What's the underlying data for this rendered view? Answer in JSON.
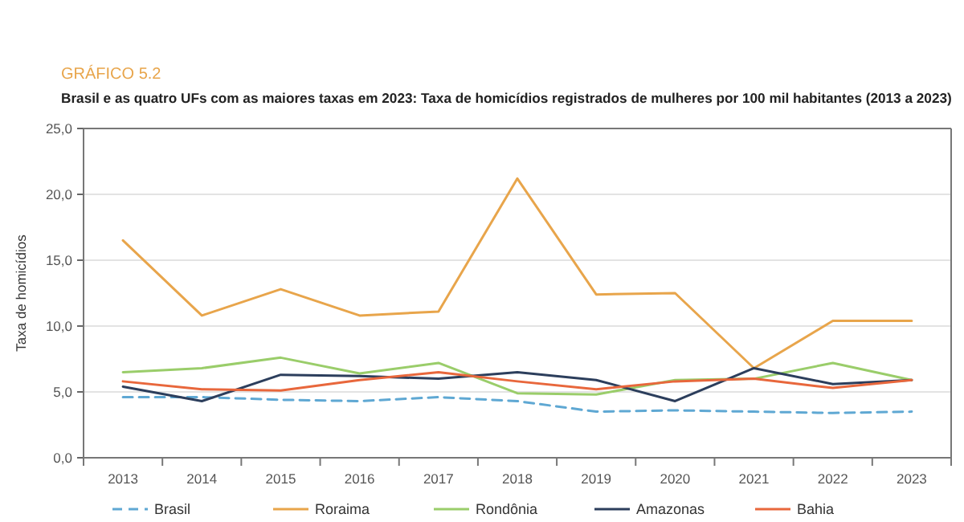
{
  "chart_data": {
    "type": "line",
    "title": "GRÁFICO 5.2",
    "subtitle": "Brasil e as quatro UFs com as maiores taxas em 2023: Taxa de homicídios registrados de mulheres por 100 mil habitantes (2013 a 2023)",
    "ylabel": "Taxa de homicídios",
    "categories": [
      "2013",
      "2014",
      "2015",
      "2016",
      "2017",
      "2018",
      "2019",
      "2020",
      "2021",
      "2022",
      "2023"
    ],
    "ylim": [
      0,
      25
    ],
    "yticks": [
      {
        "value": 0,
        "label": "0,0"
      },
      {
        "value": 5,
        "label": "5,0"
      },
      {
        "value": 10,
        "label": "10,0"
      },
      {
        "value": 15,
        "label": "15,0"
      },
      {
        "value": 20,
        "label": "20,0"
      },
      {
        "value": 25,
        "label": "25,0"
      }
    ],
    "grid": "y",
    "legend": "bottom",
    "marker": "none",
    "series": [
      {
        "name": "Brasil",
        "color": "#5fa8d3",
        "line_style": "dashed",
        "values": [
          4.6,
          4.6,
          4.4,
          4.3,
          4.6,
          4.3,
          3.5,
          3.6,
          3.5,
          3.4,
          3.5
        ]
      },
      {
        "name": "Roraima",
        "color": "#e8a54b",
        "values": [
          16.5,
          10.8,
          12.8,
          10.8,
          11.1,
          21.2,
          12.4,
          12.5,
          6.8,
          10.4,
          10.4
        ]
      },
      {
        "name": "Rondônia",
        "color": "#9acd6a",
        "values": [
          6.5,
          6.8,
          7.6,
          6.4,
          7.2,
          4.9,
          4.8,
          5.9,
          6.0,
          7.2,
          5.9
        ]
      },
      {
        "name": "Amazonas",
        "color": "#2c3e5c",
        "values": [
          5.4,
          4.3,
          6.3,
          6.2,
          6.0,
          6.5,
          5.9,
          4.3,
          6.8,
          5.6,
          5.9
        ]
      },
      {
        "name": "Bahia",
        "color": "#e8673c",
        "values": [
          5.8,
          5.2,
          5.1,
          5.9,
          6.5,
          5.8,
          5.2,
          5.8,
          6.0,
          5.3,
          5.9
        ]
      }
    ]
  }
}
